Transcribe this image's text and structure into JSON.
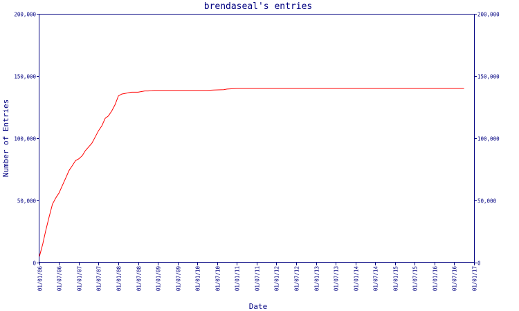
{
  "chart_data": {
    "type": "line",
    "title": "brendaseal's entries",
    "xlabel": "Date",
    "ylabel": "Number of Entries",
    "ylim": [
      0,
      200000
    ],
    "y_ticks": [
      0,
      50000,
      100000,
      150000,
      200000
    ],
    "y_tick_labels": [
      "0",
      "50,000",
      "100,000",
      "150,000",
      "200,000"
    ],
    "x_ticks": [
      "2006-01-01",
      "2006-07-01",
      "2007-01-01",
      "2007-07-01",
      "2008-01-01",
      "2008-07-01",
      "2009-01-01",
      "2009-07-01",
      "2010-01-01",
      "2010-07-01",
      "2011-01-01",
      "2011-07-01",
      "2012-01-01",
      "2012-07-01",
      "2013-01-01",
      "2013-07-01",
      "2014-01-01",
      "2014-07-01",
      "2015-01-01",
      "2015-07-01",
      "2016-01-01",
      "2016-07-01",
      "2017-01-01"
    ],
    "x_tick_labels": [
      "01/01/06",
      "01/07/06",
      "01/01/07",
      "01/07/07",
      "01/01/08",
      "01/07/08",
      "01/01/09",
      "01/07/09",
      "01/01/10",
      "01/07/10",
      "01/01/11",
      "01/07/11",
      "01/01/12",
      "01/07/12",
      "01/01/13",
      "01/07/13",
      "01/01/14",
      "01/07/14",
      "01/01/15",
      "01/07/15",
      "01/01/16",
      "01/07/16",
      "01/01/17"
    ],
    "grid": false,
    "colors": {
      "axis": "#000080",
      "line": "#ff0000",
      "background": "#ffffff"
    },
    "series": [
      {
        "x": [
          "2006-01-01",
          "2006-02-01",
          "2006-03-01",
          "2006-04-01",
          "2006-05-01",
          "2006-06-01",
          "2006-07-01",
          "2006-08-01",
          "2006-09-01",
          "2006-10-01",
          "2006-11-01",
          "2006-12-01",
          "2007-01-01",
          "2007-02-01",
          "2007-03-01",
          "2007-04-01",
          "2007-05-01",
          "2007-06-01",
          "2007-07-01",
          "2007-08-01",
          "2007-09-01",
          "2007-10-01",
          "2007-11-01",
          "2007-12-01",
          "2008-01-01",
          "2008-02-01",
          "2008-03-01",
          "2008-04-01",
          "2008-05-01",
          "2008-06-01",
          "2008-07-01",
          "2008-08-01",
          "2008-09-01",
          "2008-10-01",
          "2008-11-01",
          "2008-12-01",
          "2009-01-01",
          "2009-03-01",
          "2009-06-01",
          "2009-09-01",
          "2010-01-01",
          "2010-04-01",
          "2010-06-01",
          "2010-09-01",
          "2010-10-01",
          "2011-01-01",
          "2012-01-01",
          "2013-01-01",
          "2014-01-01",
          "2015-01-01",
          "2016-01-01",
          "2016-10-01"
        ],
        "values": [
          5000,
          15000,
          26000,
          37000,
          47000,
          52000,
          56000,
          62000,
          68000,
          74000,
          78000,
          82000,
          83500,
          86000,
          90000,
          93000,
          96000,
          101000,
          106000,
          110000,
          116000,
          118000,
          122000,
          127000,
          134000,
          135500,
          136000,
          136500,
          137000,
          137000,
          137000,
          137500,
          138000,
          138000,
          138200,
          138500,
          138500,
          138500,
          138500,
          138500,
          138500,
          138500,
          138800,
          139000,
          139500,
          140000,
          140000,
          140000,
          140000,
          140000,
          140000,
          140000
        ]
      }
    ]
  }
}
